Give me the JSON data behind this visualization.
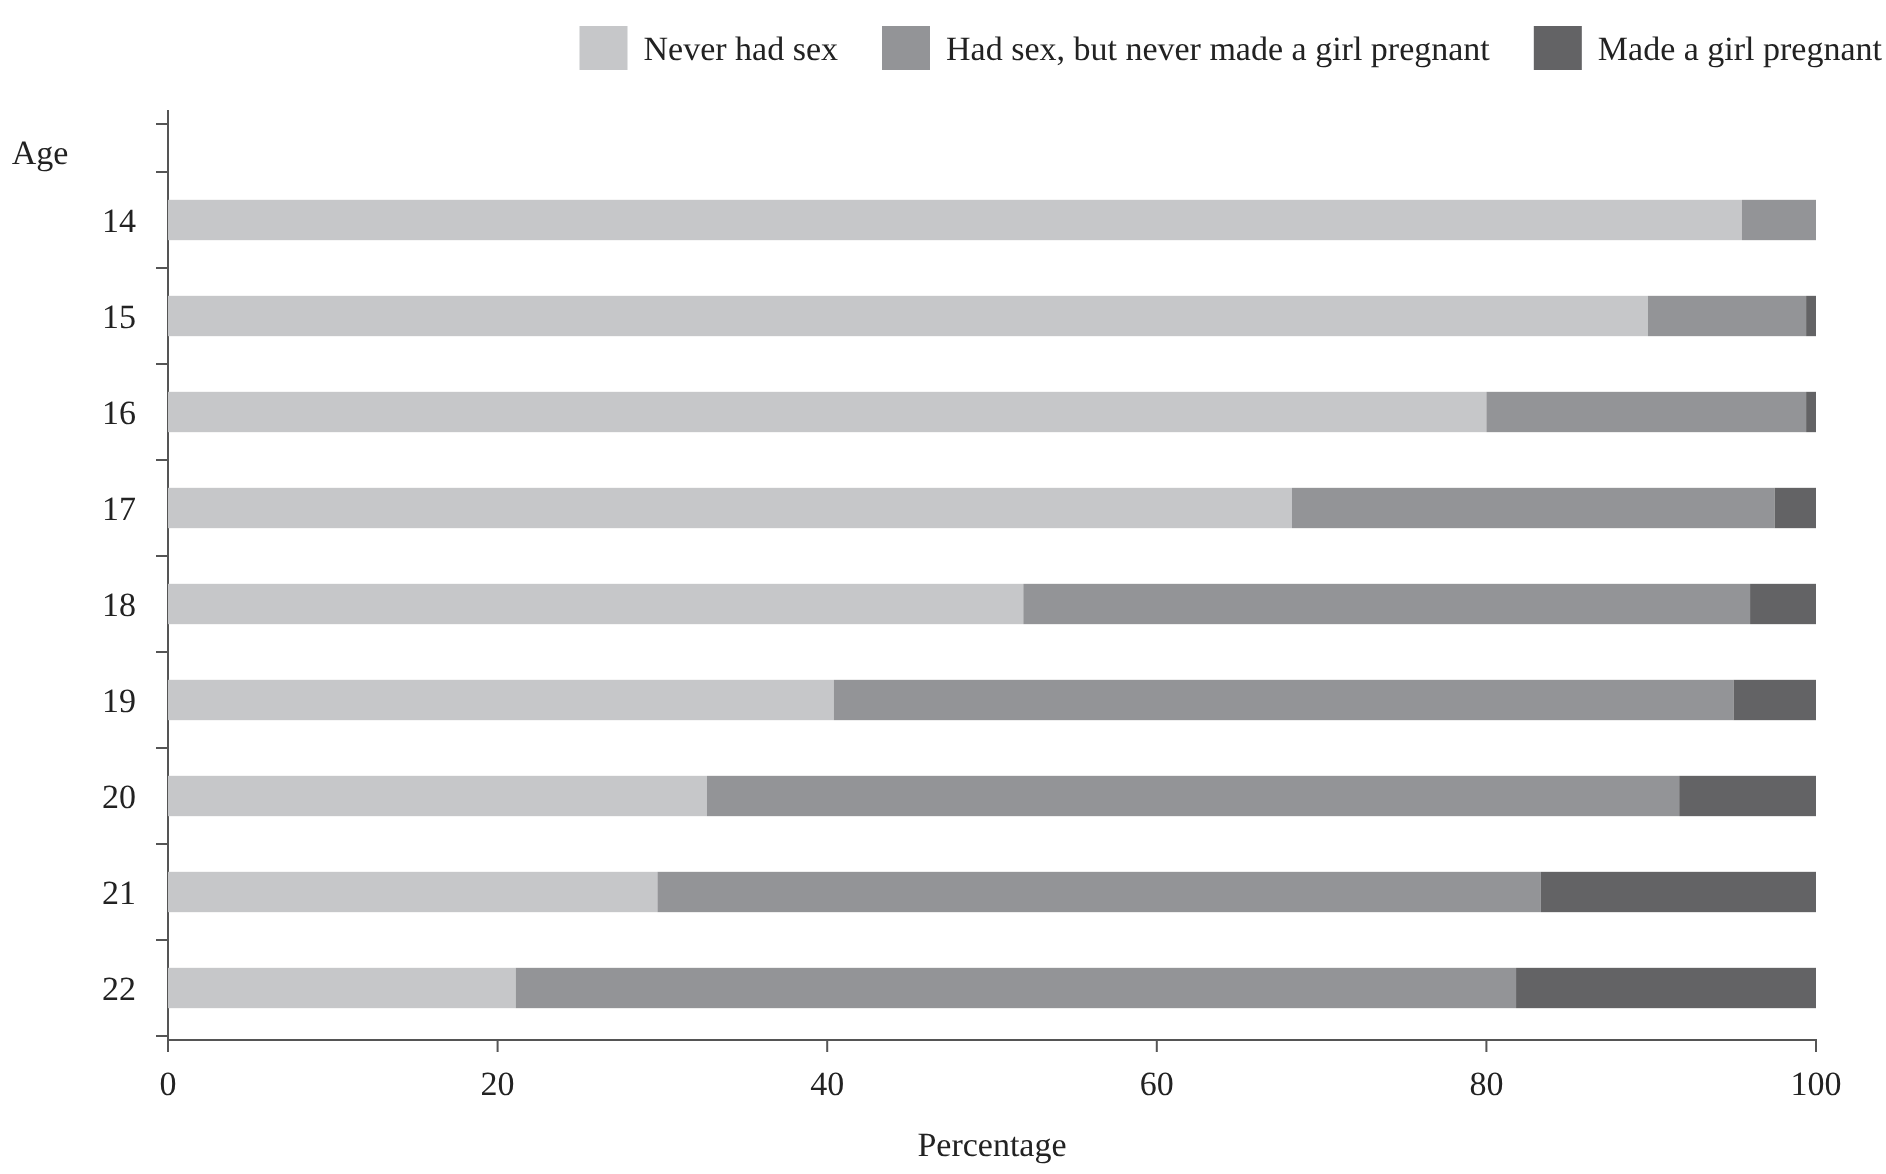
{
  "chart_data": {
    "type": "bar",
    "orientation": "horizontal",
    "stacked": true,
    "xlabel": "Percentage",
    "ylabel": "Age",
    "categories": [
      "14",
      "15",
      "16",
      "17",
      "18",
      "19",
      "20",
      "21",
      "22"
    ],
    "series": [
      {
        "name": "Never had sex",
        "color": "#c6c7c9",
        "values": [
          95.5,
          89.8,
          80.0,
          68.2,
          51.9,
          40.4,
          32.7,
          29.7,
          21.1
        ]
      },
      {
        "name": "Had sex, but never made a girl pregnant",
        "color": "#939497",
        "values": [
          4.5,
          9.6,
          19.4,
          29.3,
          44.1,
          54.6,
          59.0,
          53.6,
          60.7
        ]
      },
      {
        "name": "Made a girl pregnant",
        "color": "#636365",
        "values": [
          0,
          0.6,
          0.6,
          2.5,
          4.0,
          5.0,
          8.3,
          16.7,
          18.2
        ]
      }
    ],
    "xlim": [
      0,
      100
    ],
    "xticks": [
      0,
      20,
      40,
      60,
      80,
      100
    ],
    "legend": "top"
  }
}
